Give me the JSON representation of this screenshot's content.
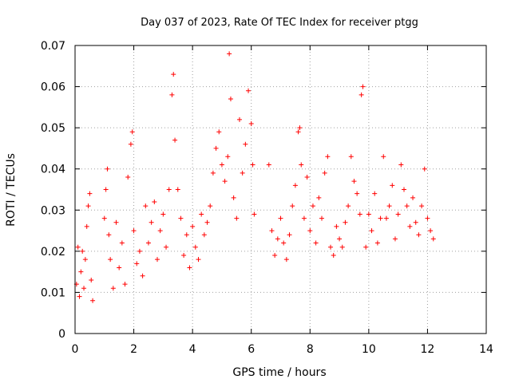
{
  "chart_data": {
    "type": "scatter",
    "title": "Day 037 of 2023, Rate Of TEC Index for receiver ptgg",
    "xlabel": "GPS time / hours",
    "ylabel": "ROTI / TECUs",
    "xlim": [
      0,
      14
    ],
    "ylim": [
      0,
      0.07
    ],
    "x_ticks": [
      "0",
      "2",
      "4",
      "6",
      "8",
      "10",
      "12",
      "14"
    ],
    "y_ticks": [
      "0",
      "0.01",
      "0.02",
      "0.03",
      "0.04",
      "0.05",
      "0.06",
      "0.07"
    ],
    "grid": true,
    "marker": "+",
    "marker_color": "#ff0000",
    "series": [
      {
        "x": [
          0.05,
          0.1,
          0.15,
          0.2,
          0.25,
          0.3,
          0.35,
          0.4,
          0.45,
          0.5,
          0.55,
          0.6,
          1.0,
          1.05,
          1.1,
          1.15,
          1.2,
          1.3,
          1.4,
          1.5,
          1.6,
          1.7,
          1.8,
          1.9,
          1.95,
          2.0,
          2.1,
          2.2,
          2.3,
          2.4,
          2.5,
          2.6,
          2.7,
          2.8,
          2.9,
          3.0,
          3.1,
          3.2,
          3.3,
          3.35,
          3.4,
          3.5,
          3.6,
          3.7,
          3.8,
          3.9,
          4.0,
          4.1,
          4.2,
          4.3,
          4.4,
          4.5,
          4.6,
          4.7,
          4.8,
          4.9,
          5.0,
          5.1,
          5.2,
          5.25,
          5.3,
          5.4,
          5.5,
          5.6,
          5.7,
          5.8,
          5.9,
          6.0,
          6.05,
          6.1,
          6.6,
          6.7,
          6.8,
          6.9,
          7.0,
          7.1,
          7.2,
          7.3,
          7.4,
          7.5,
          7.6,
          7.65,
          7.7,
          7.8,
          7.9,
          8.0,
          8.1,
          8.2,
          8.3,
          8.4,
          8.5,
          8.6,
          8.7,
          8.8,
          8.9,
          9.0,
          9.1,
          9.2,
          9.3,
          9.4,
          9.5,
          9.6,
          9.7,
          9.75,
          9.8,
          9.9,
          10.0,
          10.1,
          10.2,
          10.3,
          10.4,
          10.5,
          10.6,
          10.7,
          10.8,
          10.9,
          11.0,
          11.1,
          11.2,
          11.3,
          11.4,
          11.5,
          11.6,
          11.7,
          11.8,
          11.9,
          12.0,
          12.1,
          12.2
        ],
        "y": [
          0.012,
          0.021,
          0.009,
          0.015,
          0.02,
          0.011,
          0.018,
          0.026,
          0.031,
          0.034,
          0.013,
          0.008,
          0.028,
          0.035,
          0.04,
          0.024,
          0.018,
          0.011,
          0.027,
          0.016,
          0.022,
          0.012,
          0.038,
          0.046,
          0.049,
          0.025,
          0.017,
          0.02,
          0.014,
          0.031,
          0.022,
          0.027,
          0.032,
          0.018,
          0.025,
          0.029,
          0.021,
          0.035,
          0.058,
          0.063,
          0.047,
          0.035,
          0.028,
          0.019,
          0.024,
          0.016,
          0.026,
          0.021,
          0.018,
          0.029,
          0.024,
          0.027,
          0.031,
          0.039,
          0.045,
          0.049,
          0.041,
          0.037,
          0.043,
          0.068,
          0.057,
          0.033,
          0.028,
          0.052,
          0.039,
          0.046,
          0.059,
          0.051,
          0.041,
          0.029,
          0.041,
          0.025,
          0.019,
          0.023,
          0.028,
          0.022,
          0.018,
          0.024,
          0.031,
          0.036,
          0.049,
          0.05,
          0.041,
          0.028,
          0.038,
          0.025,
          0.031,
          0.022,
          0.033,
          0.028,
          0.039,
          0.043,
          0.021,
          0.019,
          0.026,
          0.023,
          0.021,
          0.027,
          0.031,
          0.043,
          0.037,
          0.034,
          0.029,
          0.058,
          0.06,
          0.021,
          0.029,
          0.025,
          0.034,
          0.022,
          0.028,
          0.043,
          0.028,
          0.031,
          0.036,
          0.023,
          0.029,
          0.041,
          0.035,
          0.031,
          0.026,
          0.033,
          0.027,
          0.024,
          0.031,
          0.04,
          0.028,
          0.025,
          0.023
        ]
      }
    ]
  }
}
